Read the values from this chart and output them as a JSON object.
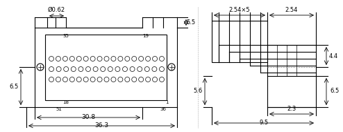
{
  "fig_width": 4.94,
  "fig_height": 1.91,
  "dpi": 100,
  "bg_color": "#ffffff",
  "line_color": "#000000",
  "dim_color": "#000000",
  "gray_color": "#888888",
  "annotations": {
    "phi_062": "Ø0.62",
    "dim_254x5": "2.54×5",
    "dim_254": "2.54",
    "dim_44": "4.4",
    "dim_55": "5.5",
    "dim_65_left": "6.5",
    "dim_65_right": "6.5",
    "dim_30_8": "30.8",
    "dim_36_3": "36.3",
    "dim_23": "2.3",
    "dim_56": "5.6",
    "dim_95": "9.5",
    "pin_35": "35",
    "pin_19": "19",
    "pin_18": "18",
    "pin_51": "51",
    "pin_1": "1",
    "pin_36": "36"
  }
}
